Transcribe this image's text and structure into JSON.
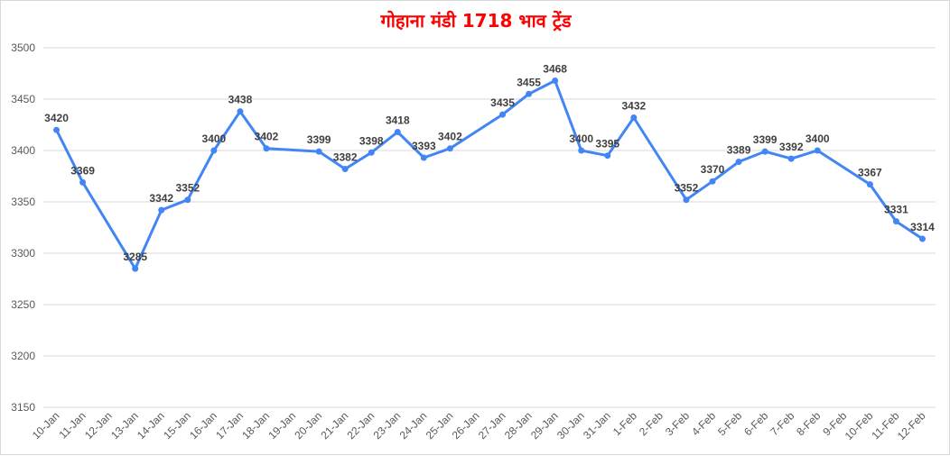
{
  "chart_data": {
    "type": "line",
    "title": "गोहाना मंडी 1718 भाव ट्रेंड",
    "xlabel": "",
    "ylabel": "",
    "ylim": [
      3150,
      3500
    ],
    "yticks": [
      3150,
      3200,
      3250,
      3300,
      3350,
      3400,
      3450,
      3500
    ],
    "grid": true,
    "legend": "none",
    "line_color": "#4285f4",
    "categories": [
      "10-Jan",
      "11-Jan",
      "12-Jan",
      "13-Jan",
      "14-Jan",
      "15-Jan",
      "16-Jan",
      "17-Jan",
      "18-Jan",
      "19-Jan",
      "20-Jan",
      "21-Jan",
      "22-Jan",
      "23-Jan",
      "24-Jan",
      "25-Jan",
      "26-Jan",
      "27-Jan",
      "28-Jan",
      "29-Jan",
      "30-Jan",
      "31-Jan",
      "1-Feb",
      "2-Feb",
      "3-Feb",
      "4-Feb",
      "5-Feb",
      "6-Feb",
      "7-Feb",
      "8-Feb",
      "9-Feb",
      "10-Feb",
      "11-Feb",
      "12-Feb"
    ],
    "series": [
      {
        "values": [
          3420,
          3369,
          null,
          3285,
          3342,
          3352,
          3400,
          3438,
          3402,
          null,
          3399,
          3382,
          3398,
          3418,
          3393,
          3402,
          null,
          3435,
          3455,
          3468,
          3400,
          3395,
          3432,
          null,
          3352,
          3370,
          3389,
          3399,
          3392,
          3400,
          null,
          3367,
          3331,
          3314
        ]
      }
    ]
  }
}
